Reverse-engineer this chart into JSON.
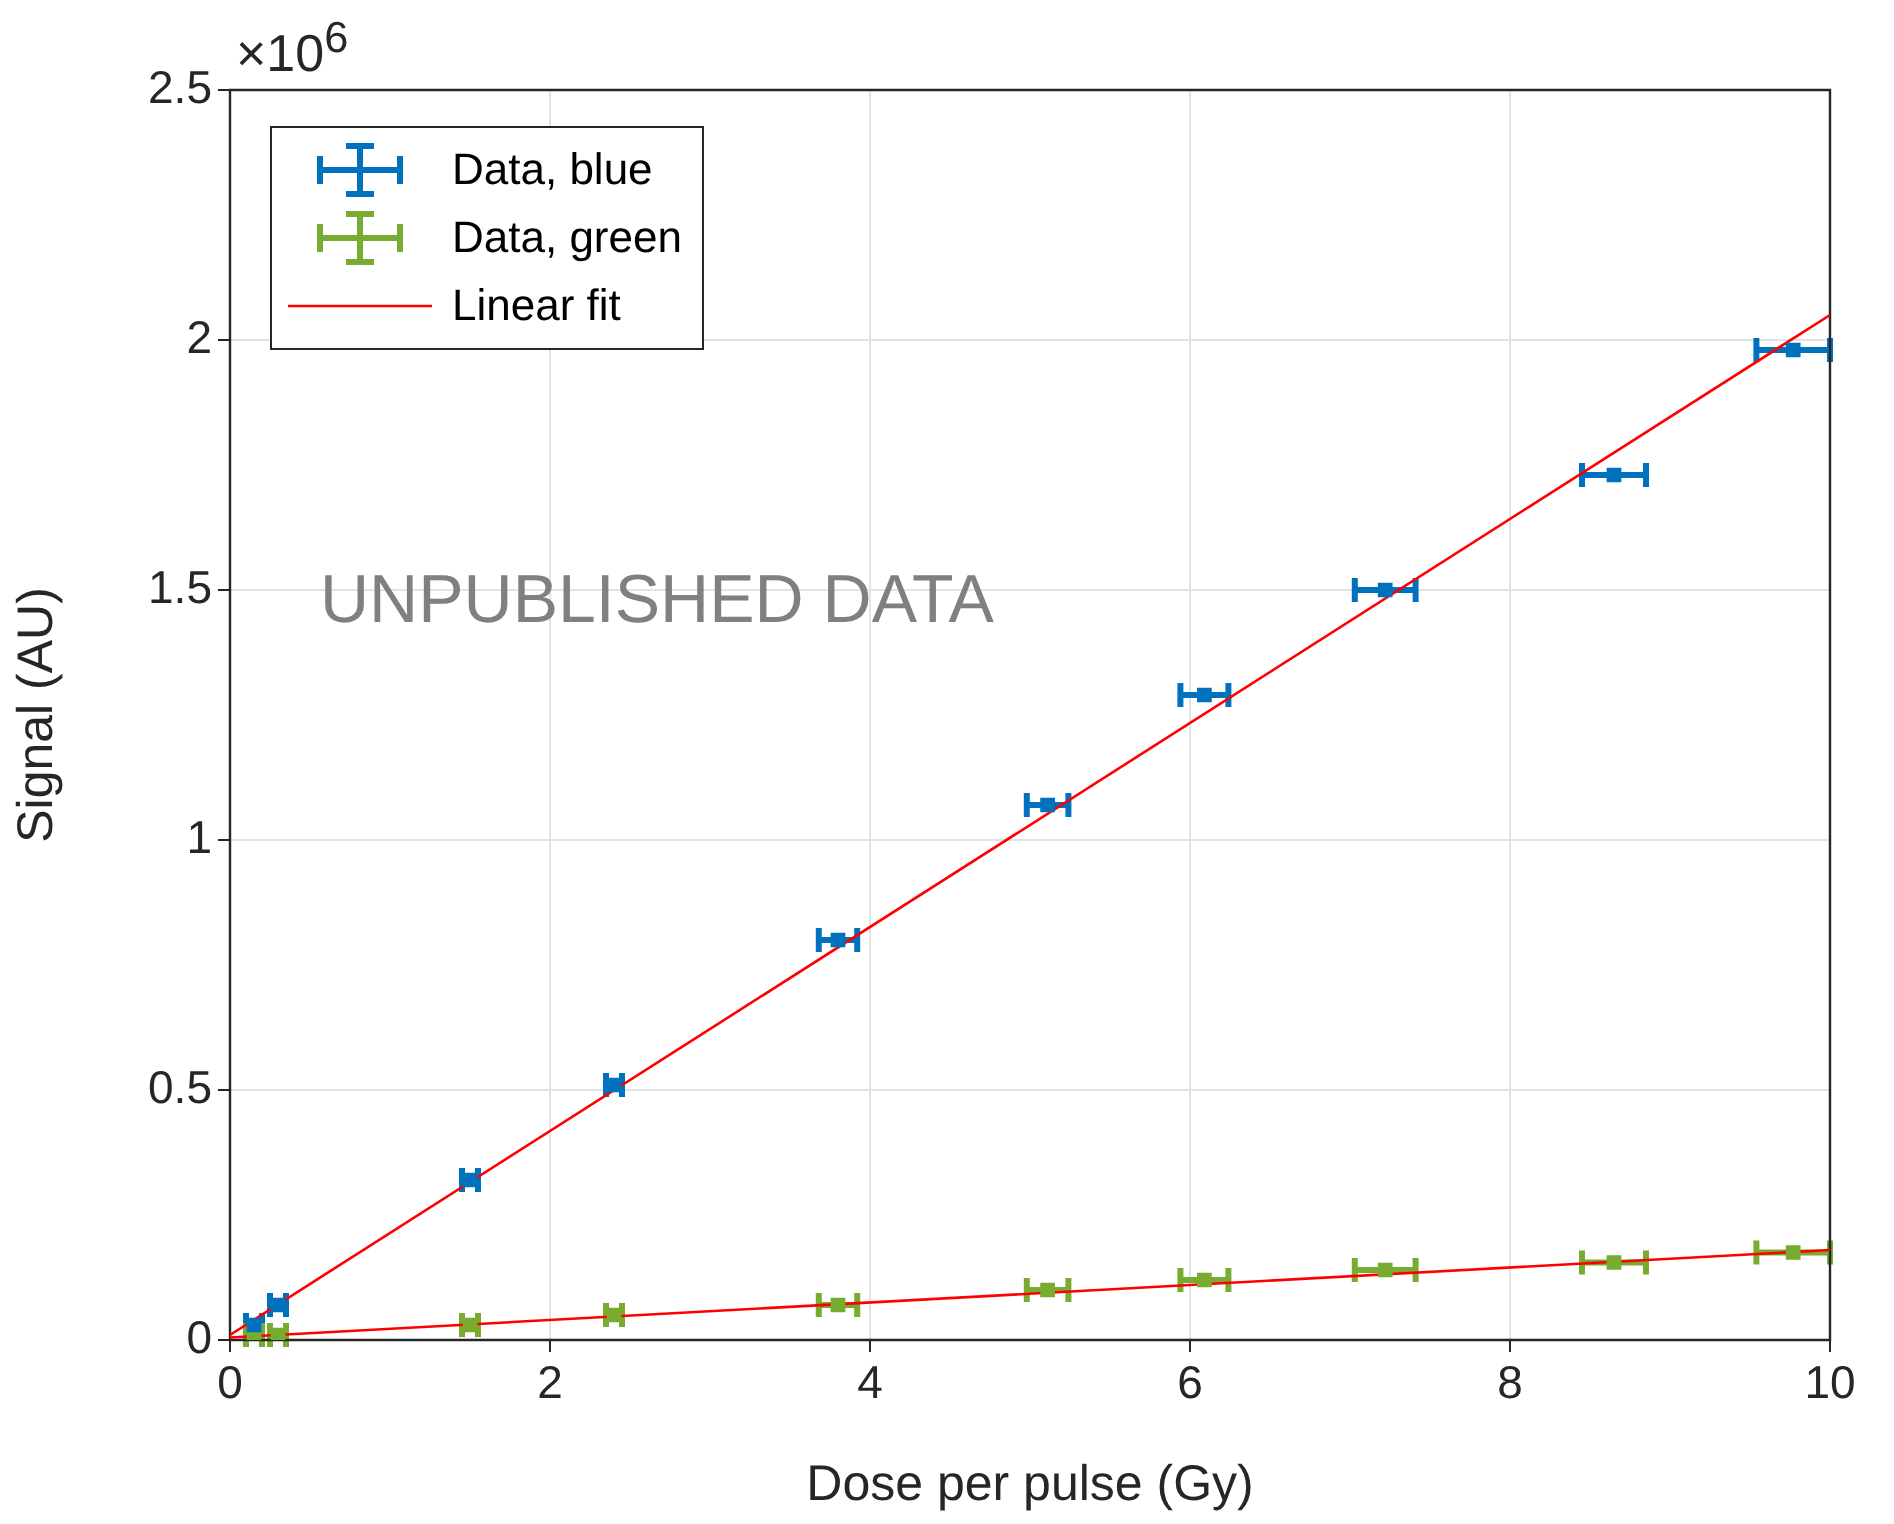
{
  "chart_data": {
    "type": "scatter",
    "xlabel": "Dose per pulse (Gy)",
    "ylabel": "Signal (AU)",
    "annotations": [
      "×10$^{6}$",
      "UNPUBLISHED DATA"
    ],
    "series": [
      {
        "name": "Data, blue",
        "color": "#0072bd",
        "x": [
          0.15,
          0.3,
          1.5,
          2.4,
          3.8,
          5.11,
          6.09,
          7.22,
          8.65,
          9.77
        ],
        "values": [
          0.03,
          0.07,
          0.32,
          0.51,
          0.8,
          1.07,
          1.29,
          1.5,
          1.73,
          1.98
        ],
        "xerrors": [
          0.05,
          0.05,
          0.05,
          0.05,
          0.12,
          0.13,
          0.15,
          0.19,
          0.2,
          0.23
        ]
      },
      {
        "name": "Data, green",
        "color": "#77ac30",
        "x": [
          0.15,
          0.3,
          1.5,
          2.4,
          3.8,
          5.11,
          6.09,
          7.22,
          8.65,
          9.77
        ],
        "values": [
          0.01,
          0.01,
          0.03,
          0.05,
          0.07,
          0.1,
          0.12,
          0.14,
          0.155,
          0.175
        ],
        "xerrors": [
          0.05,
          0.05,
          0.05,
          0.05,
          0.12,
          0.13,
          0.15,
          0.19,
          0.2,
          0.23
        ]
      },
      {
        "name": "Linear fit",
        "color": "#ff0000",
        "type": "line",
        "x": [
          0,
          10
        ],
        "values": [
          0.01,
          2.05
        ]
      },
      {
        "color": "#ff0000",
        "type": "line",
        "x": [
          0,
          10
        ],
        "values": [
          0.005,
          0.18
        ]
      }
    ],
    "xlim": [
      0,
      10
    ],
    "xticks": [
      0,
      2,
      4,
      6,
      8,
      10
    ],
    "ylim": [
      0,
      2.5
    ],
    "yticks": [
      0,
      0.5,
      1,
      1.5,
      2,
      2.5
    ],
    "grid": true,
    "legend": "top left"
  }
}
